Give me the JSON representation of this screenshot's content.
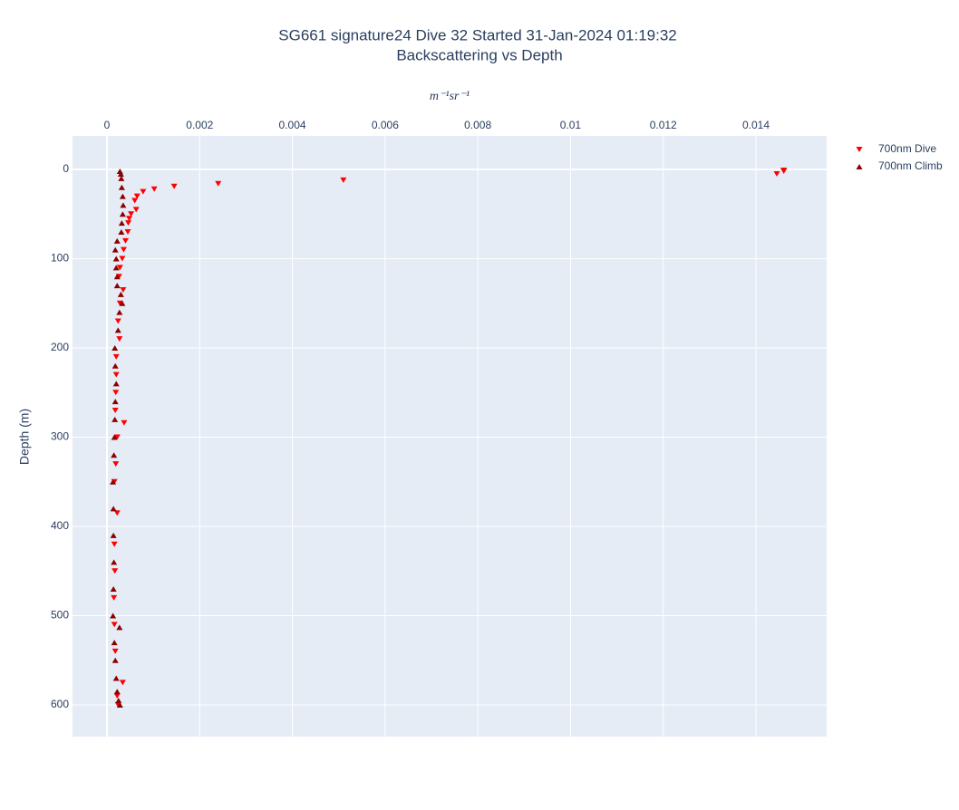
{
  "chart_data": {
    "type": "scatter",
    "title": "SG661 signature24 Dive 32 Started 31-Jan-2024 01:19:32",
    "subtitle": "Backscattering vs Depth",
    "x_label": "m⁻¹sr⁻¹",
    "y_label": "Depth (m)",
    "xlim": [
      -0.000743,
      0.015525
    ],
    "ylim": [
      -37.6,
      635.5
    ],
    "y_reversed": true,
    "x_axis_side": "top",
    "xticks": [
      0,
      0.002,
      0.004,
      0.006,
      0.008,
      0.01,
      0.012,
      0.014
    ],
    "yticks": [
      0,
      100,
      200,
      300,
      400,
      500,
      600
    ],
    "grid": true,
    "legend": "right",
    "series": [
      {
        "name": "700nm Dive",
        "color": "#ff0000",
        "marker": "triangle-down",
        "x": [
          0.0146,
          0.0146,
          0.01445,
          0.0051,
          0.0024,
          0.00145,
          0.00102,
          0.00078,
          0.00065,
          0.0006,
          0.00063,
          0.00052,
          0.00048,
          0.00046,
          0.00045,
          0.0004,
          0.00036,
          0.00033,
          0.00028,
          0.00026,
          0.00035,
          0.00028,
          0.00024,
          0.00027,
          0.0002,
          0.0002,
          0.00019,
          0.00018,
          0.00037,
          0.00022,
          0.00019,
          0.00016,
          0.00022,
          0.00016,
          0.00017,
          0.00015,
          0.00016,
          0.00018,
          0.00034,
          0.00022,
          0.00024
        ],
        "y": [
          1,
          2,
          5,
          12,
          16,
          19,
          22,
          25,
          30,
          35,
          45,
          50,
          55,
          60,
          70,
          80,
          90,
          100,
          110,
          120,
          135,
          150,
          170,
          190,
          210,
          230,
          250,
          270,
          284,
          300,
          330,
          350,
          385,
          420,
          450,
          480,
          510,
          540,
          575,
          590,
          600
        ]
      },
      {
        "name": "700nm Climb",
        "color": "#8b0000",
        "marker": "triangle-up",
        "x": [
          0.00028,
          0.0003,
          0.00031,
          0.00032,
          0.00034,
          0.00035,
          0.00034,
          0.00032,
          0.00031,
          0.00022,
          0.00018,
          0.0002,
          0.0002,
          0.00022,
          0.00022,
          0.0003,
          0.00033,
          0.00027,
          0.00024,
          0.00017,
          0.00018,
          0.0002,
          0.00018,
          0.00017,
          0.00016,
          0.00015,
          0.00013,
          0.00014,
          0.00014,
          0.00015,
          0.00014,
          0.00013,
          0.00027,
          0.00016,
          0.00018,
          0.0002,
          0.00022,
          0.00025,
          0.00028
        ],
        "y": [
          2,
          5,
          10,
          20,
          30,
          40,
          50,
          60,
          70,
          80,
          90,
          100,
          110,
          120,
          130,
          140,
          150,
          160,
          180,
          200,
          220,
          240,
          260,
          280,
          300,
          320,
          350,
          380,
          410,
          440,
          470,
          500,
          513,
          530,
          550,
          570,
          585,
          595,
          600
        ]
      }
    ]
  }
}
